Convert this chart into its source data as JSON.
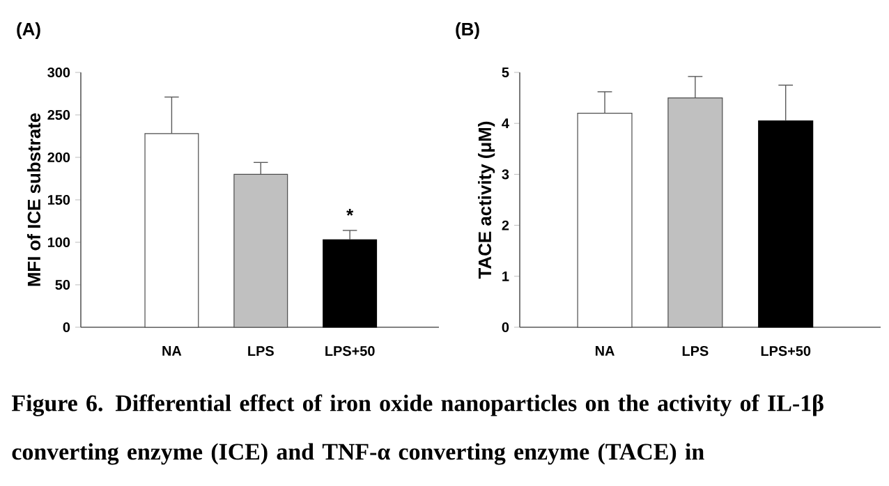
{
  "chart_data": [
    {
      "type": "bar",
      "title": "(A)",
      "ylabel": "MFI of ICE substrate",
      "categories": [
        "NA",
        "LPS",
        "LPS+50"
      ],
      "values": [
        228,
        180,
        103
      ],
      "colors": [
        "#ffffff",
        "#c0c0c0",
        "#000000"
      ],
      "errors": [
        [
          228,
          271
        ],
        [
          180,
          194
        ],
        [
          103,
          114
        ]
      ],
      "ylim": [
        0,
        300
      ],
      "yticks": [
        0,
        50,
        100,
        150,
        200,
        250,
        300
      ],
      "annotations": [
        {
          "text": "*",
          "x": "LPS+50",
          "y": 114
        },
        "Figure 6. Differential effect of iron oxide nanoparticles on the activity of IL-1β converting enzyme (ICE) and TNF-α converting enzyme (TACE) in"
      ]
    },
    {
      "type": "bar",
      "title": "(B)",
      "ylabel": "TACE activity (μM)",
      "categories": [
        "NA",
        "LPS",
        "LPS+50"
      ],
      "values": [
        4.2,
        4.5,
        4.05
      ],
      "colors": [
        "#ffffff",
        "#c0c0c0",
        "#000000"
      ],
      "errors": [
        [
          4.2,
          4.62
        ],
        [
          4.5,
          4.92
        ],
        [
          4.05,
          4.75
        ]
      ],
      "ylim": [
        0,
        5
      ],
      "yticks": [
        0,
        1,
        2,
        3,
        4,
        5
      ]
    }
  ]
}
